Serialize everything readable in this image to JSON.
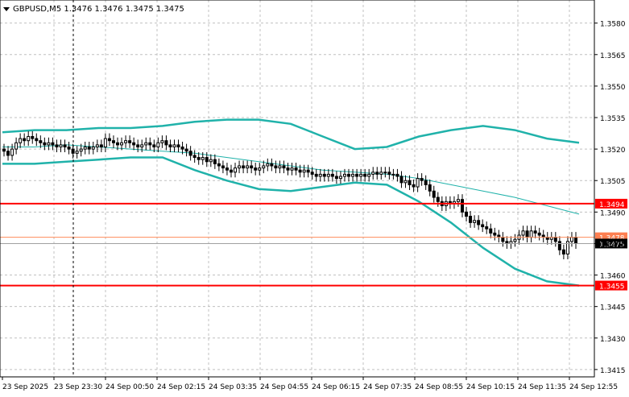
{
  "header": {
    "title": "GBPUSD,M5  1.3476 1.3476 1.3475 1.3475"
  },
  "colors": {
    "background": "#ffffff",
    "grid": "#c0c0c0",
    "candle": "#000000",
    "bands": "#20b2aa",
    "support_resistance": "#ff0000",
    "ask_line": "#ff8c5a",
    "bid_label_bg": "#000000",
    "price_label_bg": "#ff0000",
    "ask_label_bg": "#ff7f50"
  },
  "price_axis": {
    "ticks": [
      "1.3580",
      "1.3565",
      "1.3550",
      "1.3535",
      "1.3520",
      "1.3505",
      "1.3490",
      "1.3475",
      "1.3460",
      "1.3445",
      "1.3430",
      "1.3415"
    ],
    "tick_values": [
      1.358,
      1.3565,
      1.355,
      1.3535,
      1.352,
      1.3505,
      1.349,
      1.3475,
      1.346,
      1.3445,
      1.343,
      1.3415
    ],
    "top_price": 1.3591,
    "bottom_price": 1.34115
  },
  "time_axis": {
    "labels": [
      "23 Sep 2025",
      "23 Sep 23:30",
      "24 Sep 00:50",
      "24 Sep 02:15",
      "24 Sep 03:35",
      "24 Sep 04:55",
      "24 Sep 06:15",
      "24 Sep 07:35",
      "24 Sep 08:55",
      "24 Sep 10:15",
      "24 Sep 11:35",
      "24 Sep 12:55"
    ]
  },
  "levels": {
    "resistance": {
      "label": "1.3494",
      "price": 1.3494
    },
    "support": {
      "label": "1.3455",
      "price": 1.3455
    },
    "ask": {
      "label": "1.3478",
      "price": 1.3478
    },
    "bid": {
      "label": "1.3475",
      "price": 1.3475
    }
  },
  "chart_data": {
    "type": "candlestick",
    "symbol": "GBPUSD",
    "timeframe": "M5",
    "ylim": [
      1.34115,
      1.3591
    ],
    "close_series": [
      1.3519,
      1.3517,
      1.352,
      1.3523,
      1.3525,
      1.3524,
      1.3526,
      1.3525,
      1.3524,
      1.3523,
      1.3522,
      1.3523,
      1.3522,
      1.3521,
      1.3522,
      1.3521,
      1.352,
      1.3518,
      1.3519,
      1.352,
      1.3521,
      1.352,
      1.3521,
      1.3522,
      1.3521,
      1.3525,
      1.3524,
      1.3523,
      1.3522,
      1.3523,
      1.3524,
      1.3523,
      1.3522,
      1.3521,
      1.3522,
      1.3523,
      1.3522,
      1.3521,
      1.3523,
      1.3524,
      1.3522,
      1.3521,
      1.3522,
      1.3521,
      1.352,
      1.3519,
      1.3517,
      1.3516,
      1.3515,
      1.3516,
      1.3514,
      1.3515,
      1.3513,
      1.3512,
      1.3511,
      1.351,
      1.3509,
      1.3511,
      1.3512,
      1.3511,
      1.3512,
      1.3511,
      1.351,
      1.3511,
      1.3512,
      1.3513,
      1.3512,
      1.3511,
      1.3512,
      1.3511,
      1.351,
      1.3511,
      1.351,
      1.3509,
      1.351,
      1.3509,
      1.3508,
      1.3507,
      1.3508,
      1.3507,
      1.3508,
      1.3507,
      1.3506,
      1.3507,
      1.3508,
      1.3507,
      1.3508,
      1.3507,
      1.3508,
      1.3507,
      1.3508,
      1.3509,
      1.3508,
      1.3509,
      1.3509,
      1.3508,
      1.3508,
      1.3507,
      1.3504,
      1.3505,
      1.3503,
      1.3502,
      1.3506,
      1.3505,
      1.3503,
      1.35,
      1.3497,
      1.3495,
      1.3493,
      1.3495,
      1.3494,
      1.3495,
      1.3496,
      1.349,
      1.3488,
      1.3485,
      1.3486,
      1.3484,
      1.3483,
      1.3482,
      1.348,
      1.3479,
      1.3478,
      1.3476,
      1.3475,
      1.3476,
      1.3477,
      1.3479,
      1.3481,
      1.3478,
      1.3481,
      1.348,
      1.3479,
      1.3478,
      1.3477,
      1.3478,
      1.3476,
      1.3472,
      1.347,
      1.3476,
      1.3478,
      1.3475
    ],
    "bollinger": {
      "middle": [
        1.3521,
        1.3521,
        1.3522,
        1.3521,
        1.352,
        1.3519,
        1.3518,
        1.3516,
        1.3514,
        1.3512,
        1.351,
        1.3509,
        1.3508,
        1.3506,
        1.3503,
        1.35,
        1.3497,
        1.3493,
        1.3489
      ],
      "upper": [
        1.3528,
        1.3529,
        1.3529,
        1.353,
        1.353,
        1.3531,
        1.3533,
        1.3534,
        1.3534,
        1.3532,
        1.3526,
        1.352,
        1.3521,
        1.3526,
        1.3529,
        1.3531,
        1.3529,
        1.3525,
        1.3523
      ],
      "lower": [
        1.3513,
        1.3513,
        1.3514,
        1.3515,
        1.3516,
        1.3516,
        1.351,
        1.3505,
        1.3501,
        1.35,
        1.3502,
        1.3504,
        1.3503,
        1.3495,
        1.3485,
        1.3473,
        1.3463,
        1.3457,
        1.3455
      ]
    }
  }
}
